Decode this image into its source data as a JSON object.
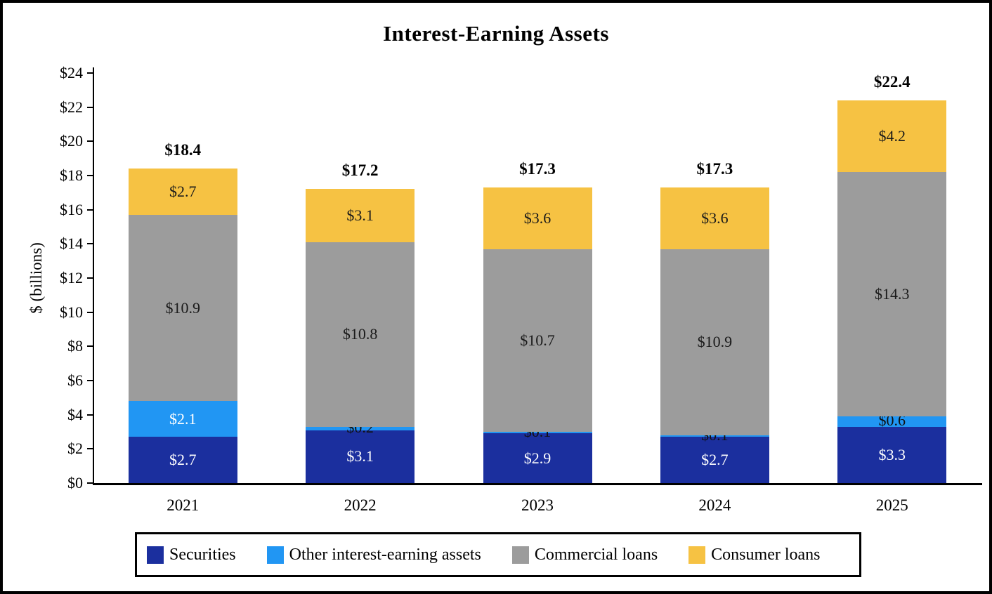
{
  "title": "Interest-Earning Assets",
  "ylabel": "$ (billions)",
  "chart_data": {
    "type": "bar",
    "stacked": true,
    "title": "Interest-Earning Assets",
    "xlabel": "",
    "ylabel": "$ (billions)",
    "categories": [
      "2021",
      "2022",
      "2023",
      "2024",
      "2025"
    ],
    "series": [
      {
        "name": "Securities",
        "color": "#1B2F9E",
        "label_color": "#ffffff",
        "values": [
          2.7,
          3.1,
          2.9,
          2.7,
          3.3
        ],
        "labels": [
          "$2.7",
          "$3.1",
          "$2.9",
          "$2.7",
          "$3.3"
        ]
      },
      {
        "name": "Other interest-earning assets",
        "color": "#2196F3",
        "label_color": "#ffffff",
        "values": [
          2.1,
          0.2,
          0.1,
          0.1,
          0.6
        ],
        "labels": [
          "$2.1",
          "$0.2",
          "$0.1",
          "$0.1",
          "$0.6"
        ]
      },
      {
        "name": "Commercial loans",
        "color": "#9C9C9C",
        "label_color": "#1a1a1a",
        "values": [
          10.9,
          10.8,
          10.7,
          10.9,
          14.3
        ],
        "labels": [
          "$10.9",
          "$10.8",
          "$10.7",
          "$10.9",
          "$14.3"
        ]
      },
      {
        "name": "Consumer loans",
        "color": "#F6C243",
        "label_color": "#1a1a1a",
        "values": [
          2.7,
          3.1,
          3.6,
          3.6,
          4.2
        ],
        "labels": [
          "$2.7",
          "$3.1",
          "$3.6",
          "$3.6",
          "$4.2"
        ]
      }
    ],
    "totals_values": [
      18.4,
      17.2,
      17.3,
      17.3,
      22.4
    ],
    "totals": [
      "$18.4",
      "$17.2",
      "$17.3",
      "$17.3",
      "$22.4"
    ],
    "ylim": [
      0,
      24
    ],
    "ytick_step": 2,
    "ytick_labels": [
      "$0",
      "$2",
      "$4",
      "$6",
      "$8",
      "$10",
      "$12",
      "$14",
      "$16",
      "$18",
      "$20",
      "$22",
      "$24"
    ],
    "grid": false,
    "legend_position": "bottom"
  }
}
